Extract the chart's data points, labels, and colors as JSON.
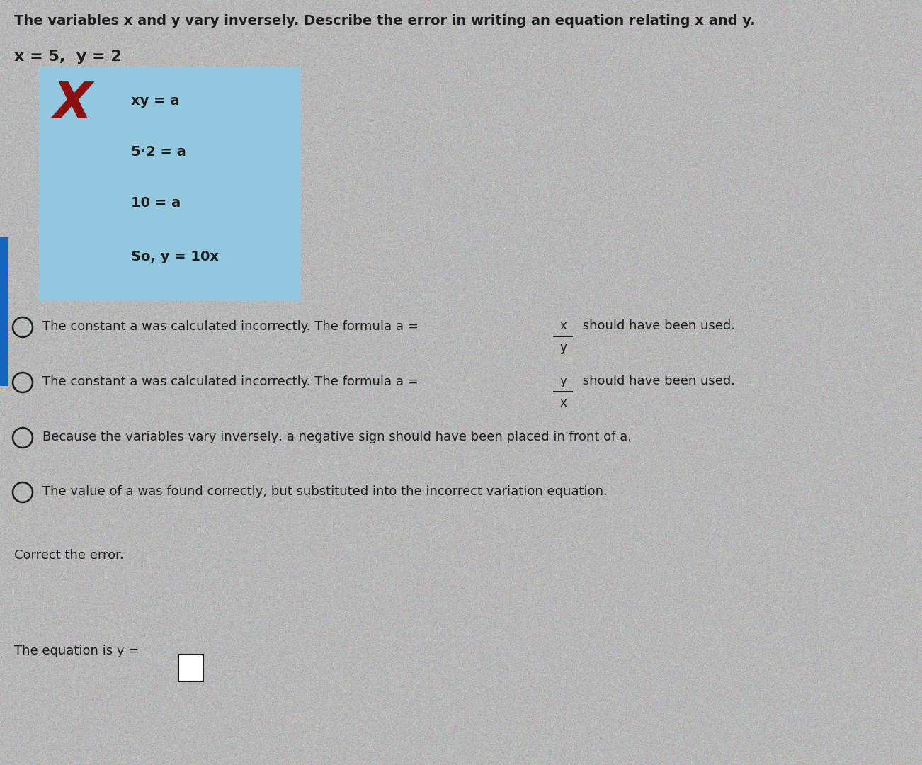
{
  "bg_color": "#b8b8b8",
  "title_line": "The variables x and y vary inversely. Describe the error in writing an equation relating x and y.",
  "given_line": "x = 5,  y = 2",
  "box_bg": "#8ecae6",
  "box_lines": [
    "xy = a",
    "5·2 = a",
    "10 = a",
    "So, y = 10x"
  ],
  "x_mark_color": "#8b1010",
  "radio_option_prefix": "The constant a was calculated incorrectly. The formula a = ",
  "radio_option_suffix": " should have been used.",
  "frac1_num": "x",
  "frac1_den": "y",
  "frac2_num": "y",
  "frac2_den": "x",
  "radio_option3": "Because the variables vary inversely, a negative sign should have been placed in front of a.",
  "radio_option4": "The value of a was found correctly, but substituted into the incorrect variation equation.",
  "correct_the_error": "Correct the error.",
  "equation_line": "The equation is y =",
  "text_color": "#1c1c1c",
  "left_bar_color": "#1565c0",
  "font_size_title": 14,
  "font_size_body": 13,
  "font_size_box": 14,
  "font_size_given": 16
}
